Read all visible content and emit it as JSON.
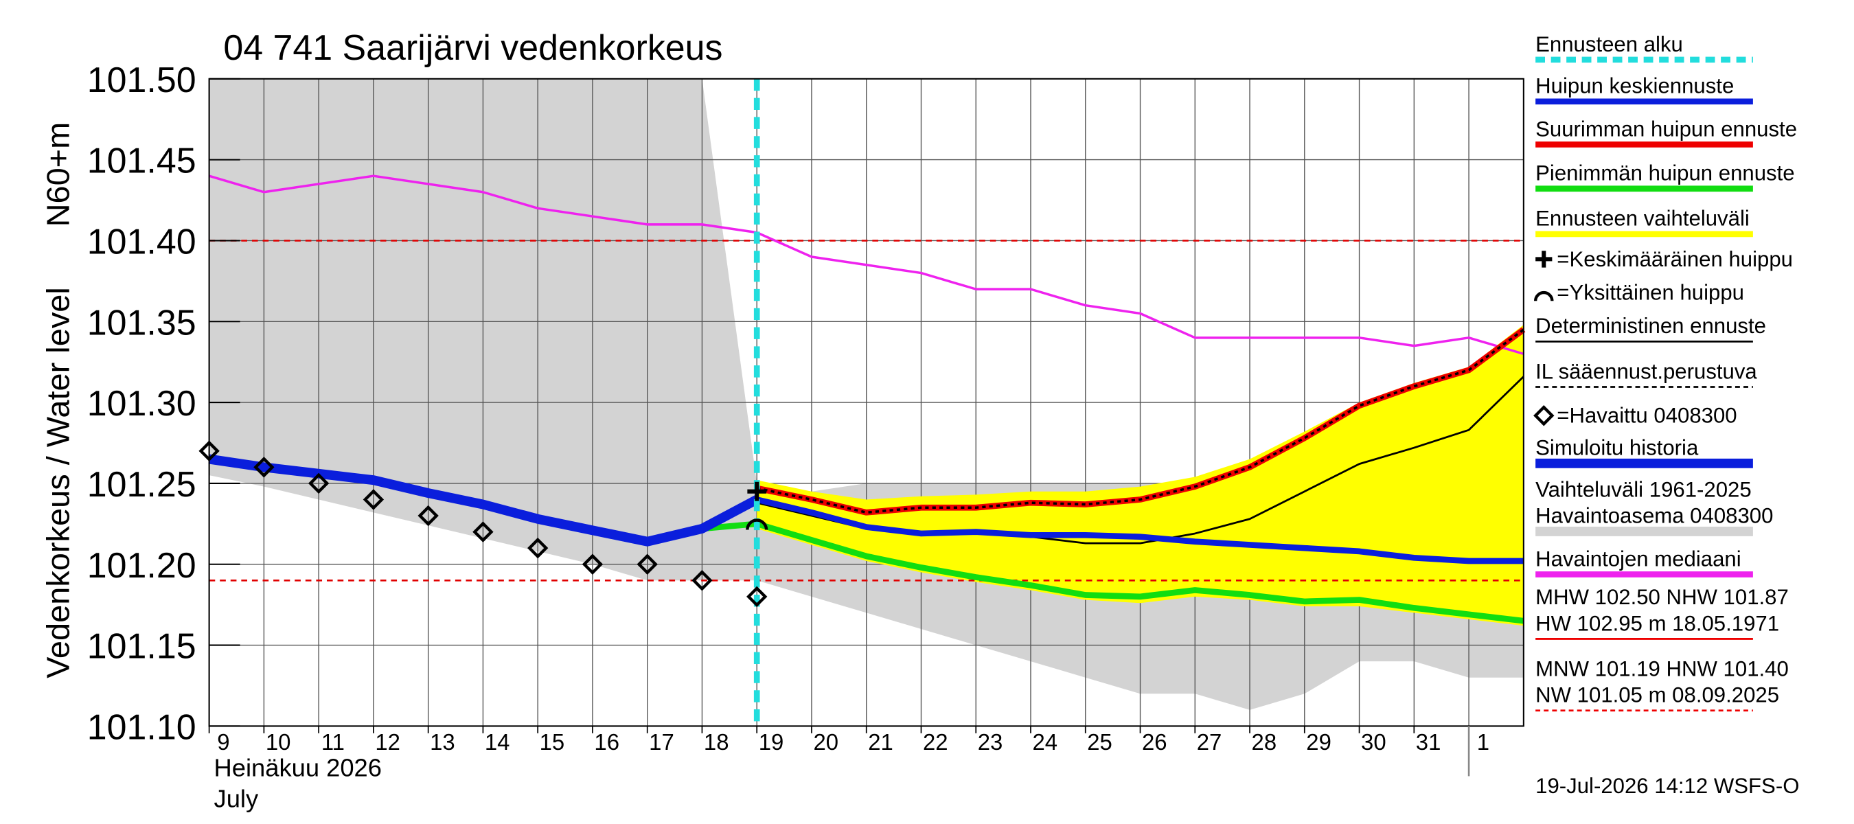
{
  "chart_data": {
    "type": "line",
    "title": "04 741 Saarijärvi vedenkorkeus",
    "ylabel": "Vedenkorkeus / Water level",
    "yunit": "N60+m",
    "xlabel": "Heinäkuu  2026",
    "xlabel2": "July",
    "footer": "19-Jul-2026 14:12 WSFS-O",
    "xlim": [
      9,
      33
    ],
    "ylim": [
      101.1,
      101.5
    ],
    "xticks": [
      9,
      10,
      11,
      12,
      13,
      14,
      15,
      16,
      17,
      18,
      19,
      20,
      21,
      22,
      23,
      24,
      25,
      26,
      27,
      28,
      29,
      30,
      31,
      {
        "value": 32,
        "label": "1"
      }
    ],
    "yticks": [
      {
        "value": 101.1,
        "label": "101.10"
      },
      101.15,
      {
        "value": 101.2,
        "label": "101.20"
      },
      101.25,
      {
        "value": 101.3,
        "label": "101.30"
      },
      101.35,
      {
        "value": 101.4,
        "label": "101.40"
      },
      101.45,
      {
        "value": 101.5,
        "label": "101.50"
      }
    ],
    "grid": true,
    "forecast_start": 19,
    "forecast_color": "#22dddd",
    "hlines": [
      101.4,
      101.19
    ],
    "hline_color": "#e00000",
    "x": [
      9,
      10,
      11,
      12,
      13,
      14,
      15,
      16,
      17,
      18,
      19,
      20,
      21,
      22,
      23,
      24,
      25,
      26,
      27,
      28,
      29,
      30,
      31,
      32,
      33
    ],
    "series": [
      {
        "kind": "band",
        "color": "#d3d3d3",
        "upper": [
          101.5,
          101.5,
          101.5,
          101.5,
          101.5,
          101.5,
          101.5,
          101.5,
          101.5,
          101.5,
          101.25,
          101.245,
          101.25,
          101.25,
          101.25,
          101.25,
          101.25,
          101.25,
          101.25,
          101.26,
          101.28,
          101.3,
          101.31,
          101.32,
          101.345
        ],
        "lower": [
          101.255,
          101.248,
          101.24,
          101.232,
          101.224,
          101.216,
          101.208,
          101.2,
          101.19,
          101.19,
          101.19,
          101.18,
          101.17,
          101.16,
          101.15,
          101.14,
          101.13,
          101.12,
          101.12,
          101.11,
          101.12,
          101.14,
          101.14,
          101.13,
          101.13
        ]
      },
      {
        "kind": "band",
        "color": "#ffff00",
        "upper": [
          null,
          null,
          null,
          null,
          null,
          null,
          null,
          null,
          null,
          null,
          101.252,
          101.245,
          101.24,
          101.242,
          101.243,
          101.245,
          101.245,
          101.248,
          101.254,
          101.265,
          101.282,
          101.3,
          101.312,
          101.322,
          101.348
        ],
        "lower": [
          null,
          null,
          null,
          null,
          null,
          null,
          null,
          null,
          null,
          null,
          101.222,
          101.212,
          101.202,
          101.195,
          101.189,
          101.184,
          101.178,
          101.176,
          101.18,
          101.178,
          101.174,
          101.174,
          101.17,
          101.166,
          101.162
        ]
      },
      {
        "kind": "line",
        "color": "#ee22ee",
        "width": 2,
        "values": [
          101.44,
          101.43,
          101.435,
          101.44,
          101.435,
          101.43,
          101.42,
          101.415,
          101.41,
          101.41,
          101.405,
          101.39,
          101.385,
          101.38,
          101.37,
          101.37,
          101.36,
          101.355,
          101.34,
          101.34,
          101.34,
          101.34,
          101.335,
          101.34,
          101.33
        ]
      },
      {
        "kind": "line",
        "color": "#000000",
        "width": 1.6,
        "values": [
          null,
          null,
          null,
          null,
          null,
          null,
          null,
          null,
          null,
          null,
          101.238,
          101.23,
          101.222,
          101.219,
          101.219,
          101.217,
          101.213,
          101.213,
          101.219,
          101.228,
          101.245,
          101.262,
          101.272,
          101.283,
          101.316
        ]
      },
      {
        "kind": "line",
        "color": "#11dd11",
        "width": 5,
        "values": [
          null,
          null,
          null,
          null,
          null,
          null,
          null,
          null,
          null,
          101.222,
          101.225,
          101.215,
          101.205,
          101.198,
          101.192,
          101.187,
          101.181,
          101.18,
          101.184,
          101.181,
          101.177,
          101.178,
          101.173,
          101.169,
          101.165
        ]
      },
      {
        "kind": "line",
        "color": "#ee0000",
        "width": 5,
        "dotted_overlay": true,
        "values": [
          null,
          null,
          null,
          null,
          null,
          null,
          null,
          null,
          null,
          null,
          101.247,
          101.24,
          101.232,
          101.235,
          101.235,
          101.238,
          101.237,
          101.24,
          101.248,
          101.26,
          101.278,
          101.298,
          101.31,
          101.32,
          101.345
        ]
      },
      {
        "kind": "line",
        "color": "#0a1edc",
        "width": 8,
        "values": [
          101.265,
          101.26,
          101.256,
          101.252,
          101.244,
          101.237,
          101.228,
          101.221,
          101.214,
          101.222,
          101.24,
          null,
          null,
          null,
          null,
          null,
          null,
          null,
          null,
          null,
          null,
          null,
          null,
          null,
          null
        ]
      },
      {
        "kind": "line",
        "color": "#0a1edc",
        "width": 5,
        "values": [
          null,
          null,
          null,
          null,
          null,
          null,
          null,
          null,
          null,
          null,
          101.24,
          101.232,
          101.223,
          101.219,
          101.22,
          101.218,
          101.218,
          101.217,
          101.214,
          101.212,
          101.21,
          101.208,
          101.204,
          101.202,
          101.202
        ]
      },
      {
        "kind": "diamond",
        "color": "#000000",
        "values": [
          101.27,
          101.26,
          101.25,
          101.24,
          101.23,
          101.22,
          101.21,
          101.2,
          101.2,
          101.19,
          101.18,
          null,
          null,
          null,
          null,
          null,
          null,
          null,
          null,
          null,
          null,
          null,
          null,
          null,
          null
        ]
      }
    ],
    "peaks": [
      {
        "kind": "plus",
        "x": 19,
        "y": 101.245
      },
      {
        "kind": "arc",
        "x": 19,
        "y": 101.225
      }
    ],
    "legend": [
      {
        "lines": [
          "Ennusteen alku"
        ],
        "color": "#22dddd",
        "style": "dashed"
      },
      {
        "lines": [
          "Huipun keskiennuste"
        ],
        "color": "#0a1edc",
        "style": "solid"
      },
      {
        "lines": [
          "Suurimman huipun ennuste"
        ],
        "color": "#ee0000",
        "style": "solid"
      },
      {
        "lines": [
          "Pienimmän huipun ennuste"
        ],
        "color": "#11dd11",
        "style": "solid"
      },
      {
        "lines": [
          "Ennusteen vaihteluväli"
        ],
        "color": "#ffff00",
        "style": "solid"
      },
      {
        "lines": [
          "=Keskimääräinen huippu"
        ],
        "color": "#000000",
        "style": "plus"
      },
      {
        "lines": [
          "=Yksittäinen huippu"
        ],
        "color": "#000000",
        "style": "arc"
      },
      {
        "lines": [
          "Deterministinen ennuste"
        ],
        "color": "#000000",
        "style": "thin"
      },
      {
        "lines": [
          "IL sääennust.perustuva"
        ],
        "color": "#000000",
        "style": "dotted"
      },
      {
        "lines": [
          "=Havaittu 0408300"
        ],
        "color": "#000000",
        "style": "diamond"
      },
      {
        "lines": [
          "Simuloitu historia"
        ],
        "color": "#0a1edc",
        "style": "thick"
      },
      {
        "lines": [
          "Vaihteluväli 1961-2025",
          "Havaintoasema 0408300"
        ],
        "color": "#d3d3d3",
        "style": "thick"
      },
      {
        "lines": [
          "Havaintojen mediaani"
        ],
        "color": "#ee22ee",
        "style": "solid"
      },
      {
        "lines": [
          "MHW 102.50 NHW 101.87",
          "HW 102.95 m 18.05.1971"
        ],
        "color": "#ee0000",
        "style": "thin"
      },
      {
        "lines": [
          "MNW 101.19 HNW 101.40",
          "NW 101.05 m 08.09.2025"
        ],
        "color": "#ee0000",
        "style": "dotted"
      }
    ]
  }
}
